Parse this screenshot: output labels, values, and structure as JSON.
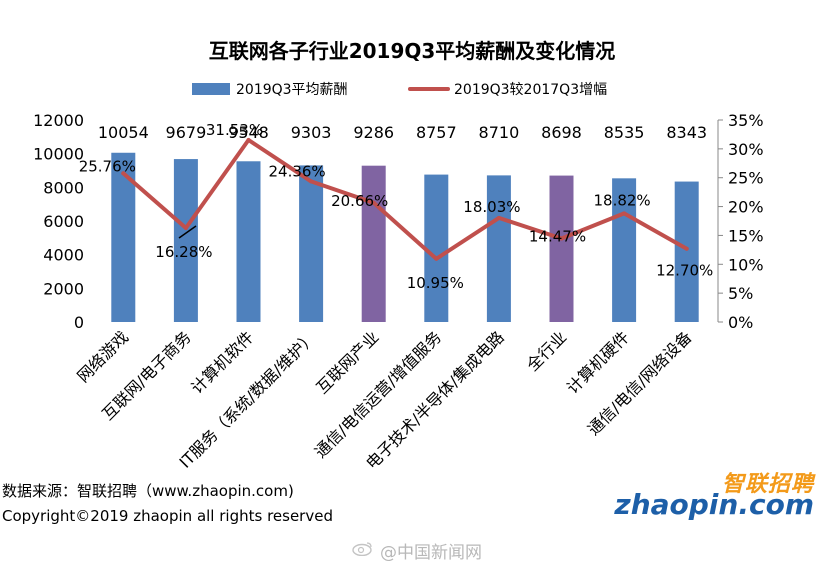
{
  "chart_data": {
    "type": "bar",
    "title": "互联网各子行业2019Q3平均薪酬及变化情况",
    "categories": [
      "网络游戏",
      "互联网/电子商务",
      "计算机软件",
      "IT服务（系统/数据/维护）",
      "互联网产业",
      "通信/电信运营/增值服务",
      "电子技术/半导体/集成电路",
      "全行业",
      "计算机硬件",
      "通信/电信/网络设备"
    ],
    "series": [
      {
        "name": "2019Q3平均薪酬",
        "type": "bar",
        "axis": "left",
        "values": [
          10054,
          9679,
          9548,
          9303,
          9286,
          8757,
          8710,
          8698,
          8535,
          8343
        ],
        "labels": [
          "10054",
          "9679",
          "9548",
          "9303",
          "9286",
          "8757",
          "8710",
          "8698",
          "8535",
          "8343"
        ]
      },
      {
        "name": "2019Q3较2017Q3增幅",
        "type": "line",
        "axis": "right",
        "values": [
          25.76,
          16.28,
          31.53,
          24.36,
          20.66,
          10.95,
          18.03,
          14.47,
          18.82,
          12.7
        ],
        "labels": [
          "25.76%",
          "16.28%",
          "31.53%",
          "24.36%",
          "20.66%",
          "10.95%",
          "18.03%",
          "14.47%",
          "18.82%",
          "12.70%"
        ]
      }
    ],
    "left_axis": {
      "ylim": [
        0,
        12000
      ],
      "ticks": [
        "0",
        "2000",
        "4000",
        "6000",
        "8000",
        "10000",
        "12000"
      ]
    },
    "right_axis": {
      "ylim": [
        0,
        35
      ],
      "ticks": [
        "0%",
        "5%",
        "10%",
        "15%",
        "20%",
        "25%",
        "30%",
        "35%"
      ]
    },
    "legend_position": "top",
    "grid": false,
    "colors": {
      "bar": "#4f81bd",
      "bar_highlight": "#8064a2",
      "line": "#c0504d"
    },
    "highlighted_categories": [
      "互联网产业",
      "全行业"
    ]
  },
  "footer": {
    "source": "数据来源：智联招聘（www.zhaopin.com)",
    "copyright": "Copyright©2019 zhaopin all rights reserved"
  },
  "logo": {
    "cn": "智联招聘",
    "en": "zhaopin.com"
  },
  "watermark": "@中国新闻网"
}
